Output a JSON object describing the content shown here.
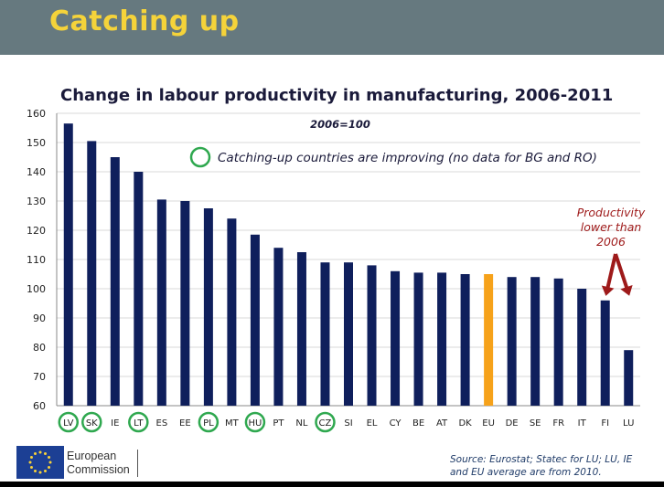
{
  "header": {
    "title": "Catching up"
  },
  "chart_data": {
    "type": "bar",
    "title": "Change in labour productivity in manufacturing, 2006-2011",
    "subtitle": "2006=100",
    "categories": [
      "LV",
      "SK",
      "IE",
      "LT",
      "ES",
      "EE",
      "PL",
      "MT",
      "HU",
      "PT",
      "NL",
      "CZ",
      "SI",
      "EL",
      "CY",
      "BE",
      "AT",
      "DK",
      "EU",
      "DE",
      "SE",
      "FR",
      "IT",
      "FI",
      "LU"
    ],
    "values": [
      156.5,
      150.5,
      145,
      140,
      130.5,
      130,
      127.5,
      124,
      118.5,
      114,
      112.5,
      109,
      109,
      108,
      106,
      105.5,
      105.5,
      105,
      105,
      104,
      104,
      103.5,
      100,
      96,
      79
    ],
    "highlighted": [
      "EU"
    ],
    "circled": [
      "LV",
      "SK",
      "LT",
      "PL",
      "HU",
      "CZ"
    ],
    "ylim": [
      60,
      160
    ],
    "yticks": [
      60,
      70,
      80,
      90,
      100,
      110,
      120,
      130,
      140,
      150,
      160
    ],
    "grid": true,
    "colors": {
      "bar": "#0f1f5c",
      "highlight": "#f6a21a",
      "circle": "#2fa84f",
      "arrow": "#9e1a1a",
      "grid": "#d8d8d8"
    }
  },
  "annotations": {
    "legend_text": "Catching-up countries are improving (no data for BG and RO)",
    "lower": [
      "Productivity",
      "lower than",
      "2006"
    ]
  },
  "footer": {
    "brand_line1": "European",
    "brand_line2": "Commission",
    "source_line1": "Source: Eurostat; Statec for LU; LU, IE",
    "source_line2": "and EU average are from 2010."
  }
}
